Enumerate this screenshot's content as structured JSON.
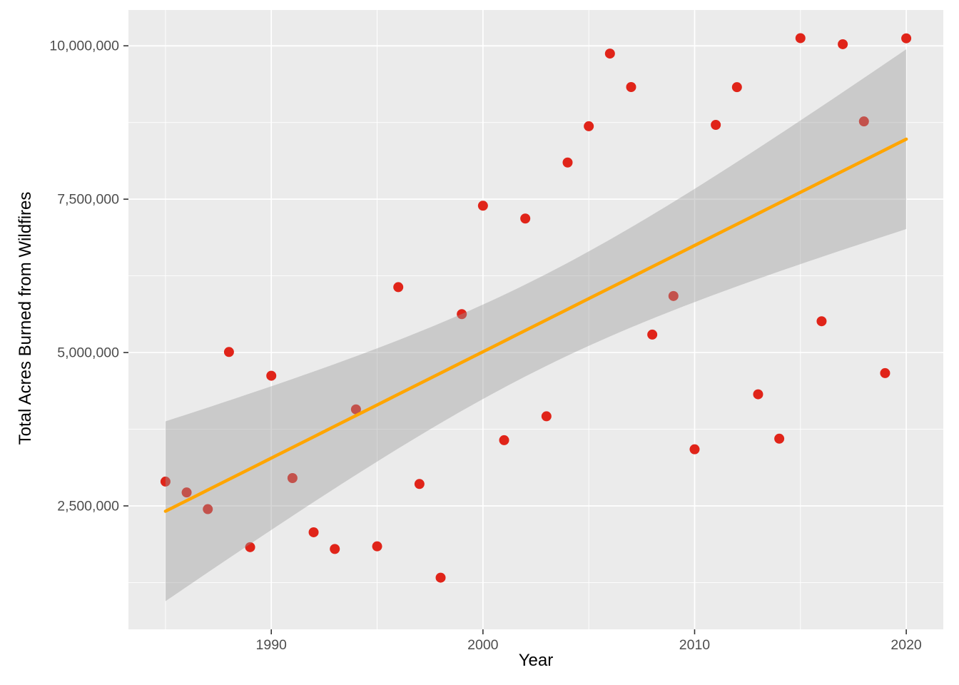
{
  "chart_data": {
    "type": "scatter",
    "title": "",
    "xlabel": "Year",
    "ylabel": "Total Acres Burned from Wildfires",
    "x": [
      1985,
      1986,
      1987,
      1988,
      1989,
      1990,
      1991,
      1992,
      1993,
      1994,
      1995,
      1996,
      1997,
      1998,
      1999,
      2000,
      2001,
      2002,
      2003,
      2004,
      2005,
      2006,
      2007,
      2008,
      2009,
      2010,
      2011,
      2012,
      2013,
      2014,
      2015,
      2016,
      2017,
      2018,
      2019,
      2020
    ],
    "values": [
      2896147,
      2719162,
      2447296,
      5009290,
      1827310,
      4621621,
      2953578,
      2069929,
      1797574,
      4073579,
      1840546,
      6065998,
      2856959,
      1329704,
      5626093,
      7393493,
      3570911,
      7184712,
      3960842,
      8097880,
      8689389,
      9873745,
      9328045,
      5292468,
      5921786,
      3422724,
      8711367,
      9326238,
      4319546,
      3595613,
      10125149,
      5509995,
      10026086,
      8767492,
      4664364,
      10122336
    ],
    "x_ticks": [
      1990,
      2000,
      2010,
      2020
    ],
    "x_tick_labels": [
      "1990",
      "2000",
      "2010",
      "2020"
    ],
    "x_minor_ticks": [
      1985,
      1995,
      2005,
      2015
    ],
    "y_ticks": [
      2500000,
      5000000,
      7500000,
      10000000
    ],
    "y_tick_labels": [
      "2,500,000",
      "5,000,000",
      "7,500,000",
      "10,000,000"
    ],
    "y_minor_ticks": [
      1250000,
      3750000,
      6250000,
      8750000
    ],
    "grid": true,
    "legend": false,
    "trend": {
      "type": "linear_regression_95ci",
      "line_color": "#FFA500",
      "ribbon_color": "#999999",
      "ribbon_opacity": 0.4
    },
    "style": {
      "panel_bg": "#EBEBEB",
      "grid_color": "#FFFFFF",
      "point_color": "#E02419",
      "tick_label_color": "#4D4D4D",
      "tick_mark_color": "#333333"
    }
  }
}
